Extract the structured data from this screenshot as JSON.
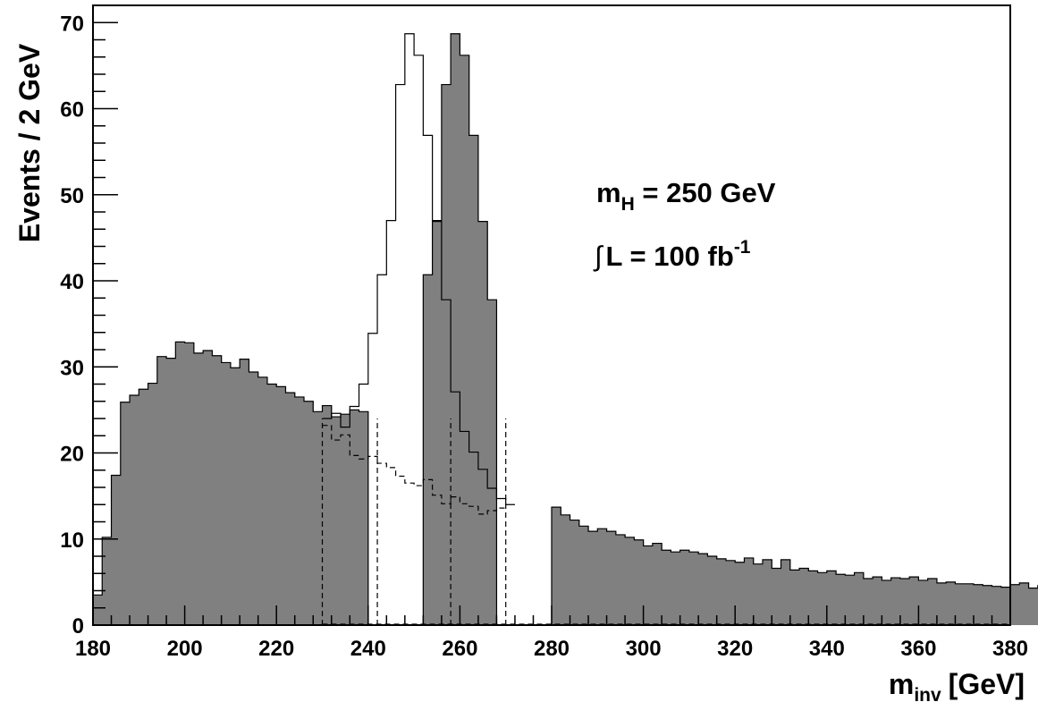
{
  "chart_data": {
    "type": "histogram",
    "xlabel": "m",
    "xlabel_sub": "inv",
    "xlabel_unit": "[GeV]",
    "ylabel": "Events / 2 GeV",
    "xlim": [
      180,
      380
    ],
    "ylim": [
      0,
      72
    ],
    "bin_width": 2,
    "x_ticks": [
      "180",
      "200",
      "220",
      "240",
      "260",
      "280",
      "300",
      "320",
      "340",
      "360",
      "380"
    ],
    "y_ticks": [
      "0",
      "10",
      "20",
      "30",
      "40",
      "50",
      "60",
      "70"
    ],
    "annotations": {
      "mass_label": "m",
      "mass_sub": "H",
      "mass_value": " = 250 GeV",
      "lumi_integral": "∫",
      "lumi_label": "L = 100 fb",
      "lumi_sup": "-1"
    },
    "series": [
      {
        "style": "filled",
        "fill": "#808080",
        "bin_edges_start": 180,
        "values": [
          3.5,
          10.2,
          17.4,
          25.9,
          26.7,
          27.4,
          28.1,
          31.2,
          31.0,
          32.9,
          32.8,
          31.6,
          31.9,
          31.3,
          30.5,
          29.9,
          30.9,
          29.4,
          28.8,
          28.0,
          27.7,
          27.0,
          26.5,
          26.0,
          24.8,
          25.5,
          24.2,
          24.5,
          25.0,
          24.8,
          0,
          0,
          0,
          0,
          0,
          0,
          40.7,
          47.0,
          62.8,
          68.7,
          66.2,
          56.9,
          46.9,
          37.8,
          0,
          0,
          0,
          0,
          0,
          0,
          13.7,
          12.8,
          12.2,
          11.5,
          10.9,
          11.2,
          10.9,
          10.5,
          10.2,
          9.9,
          9.2,
          9.5,
          8.7,
          8.5,
          8.7,
          8.5,
          8.3,
          8.0,
          7.7,
          7.5,
          7.3,
          7.8,
          7.1,
          7.6,
          6.6,
          7.6,
          6.4,
          6.6,
          6.3,
          6.1,
          6.3,
          5.9,
          5.8,
          6.1,
          5.4,
          5.6,
          5.2,
          5.5,
          5.4,
          5.6,
          5.2,
          5.4,
          4.9,
          5.0,
          4.8,
          4.8,
          4.7,
          4.6,
          4.5,
          4.4,
          4.7,
          4.9,
          4.3,
          4.6,
          3.9,
          4.4,
          3.8,
          4.1,
          3.6,
          3.6,
          3.5,
          3.7,
          3.4,
          3.7,
          3.9,
          3.4,
          3.8,
          4.1,
          3.4,
          3.0,
          3.1,
          2.8,
          2.8,
          3.5,
          3.1
        ]
      },
      {
        "style": "solid-outline",
        "x_start": 230,
        "values": [
          24.0,
          24.6,
          23.0,
          25.4,
          28.0,
          33.9,
          40.7,
          47.0,
          62.8,
          68.7,
          66.2,
          56.9,
          46.9,
          37.8,
          27.1,
          22.5,
          20.1,
          18.1,
          15.9,
          14.7,
          14.0
        ]
      },
      {
        "style": "dashed-outline",
        "x_start": 230,
        "values": [
          23.2,
          21.5,
          22.1,
          19.7,
          19.3,
          19.6,
          18.8,
          18.3,
          17.3,
          16.5,
          16.2,
          16.9,
          15.1,
          14.1,
          14.9,
          14.1,
          13.8,
          12.9,
          13.3,
          13.6
        ]
      }
    ],
    "cut_lines": [
      230,
      242,
      258,
      270
    ]
  }
}
